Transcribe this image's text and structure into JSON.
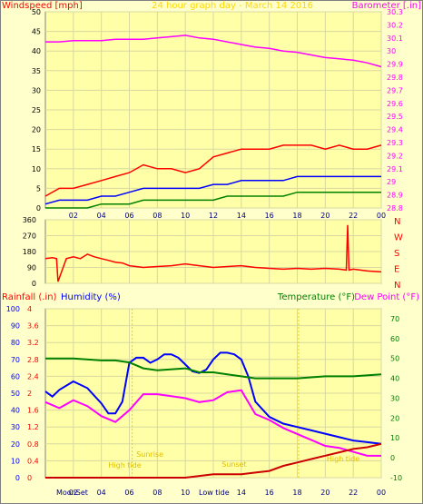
{
  "chart_data": [
    {
      "type": "line",
      "title": "24 hour graph day - March 14 2016",
      "ylabel_left": "Windspeed [mph]",
      "ylabel_right": "Barometer [.in]",
      "x_ticks": [
        "02",
        "04",
        "06",
        "08",
        "10",
        "12",
        "14",
        "16",
        "18",
        "20",
        "22",
        "00"
      ],
      "ylim_left": [
        0,
        50
      ],
      "yticks_left": [
        0,
        5,
        10,
        15,
        20,
        25,
        30,
        35,
        40,
        45,
        50
      ],
      "ylim_right": [
        28.8,
        30.3
      ],
      "yticks_right": [
        "28.8",
        "28.9",
        "29",
        "29.1",
        "29.2",
        "29.3",
        "29.4",
        "29.5",
        "29.6",
        "29.7",
        "29.8",
        "29.9",
        "30",
        "30.1",
        "30.2",
        "30.3"
      ],
      "series": [
        {
          "axis": "right",
          "color": "#ff00ff",
          "x": [
            0,
            1,
            2,
            3,
            4,
            5,
            6,
            7,
            8,
            9,
            10,
            11,
            12,
            13,
            14,
            15,
            16,
            17,
            18,
            19,
            20,
            21,
            22,
            23,
            24
          ],
          "values": [
            30.07,
            30.07,
            30.08,
            30.08,
            30.08,
            30.09,
            30.09,
            30.09,
            30.1,
            30.11,
            30.12,
            30.1,
            30.09,
            30.07,
            30.05,
            30.03,
            30.02,
            30.0,
            29.99,
            29.97,
            29.95,
            29.94,
            29.93,
            29.91,
            29.88
          ]
        },
        {
          "color": "#ff0000",
          "x": [
            0,
            1,
            2,
            3,
            4,
            5,
            6,
            7,
            8,
            9,
            10,
            11,
            12,
            13,
            14,
            15,
            16,
            17,
            18,
            19,
            20,
            21,
            22,
            23,
            24
          ],
          "values": [
            3,
            5,
            5,
            6,
            7,
            8,
            9,
            11,
            10,
            10,
            9,
            10,
            13,
            14,
            15,
            15,
            15,
            16,
            16,
            16,
            15,
            16,
            15,
            15,
            16
          ]
        },
        {
          "color": "#0000ff",
          "x": [
            0,
            1,
            2,
            3,
            4,
            5,
            6,
            7,
            8,
            9,
            10,
            11,
            12,
            13,
            14,
            15,
            16,
            17,
            18,
            19,
            20,
            21,
            22,
            23,
            24
          ],
          "values": [
            1,
            2,
            2,
            2,
            3,
            3,
            4,
            5,
            5,
            5,
            5,
            5,
            6,
            6,
            7,
            7,
            7,
            7,
            8,
            8,
            8,
            8,
            8,
            8,
            8
          ]
        },
        {
          "color": "#008000",
          "x": [
            0,
            1,
            2,
            3,
            4,
            5,
            6,
            7,
            8,
            9,
            10,
            11,
            12,
            13,
            14,
            15,
            16,
            17,
            18,
            19,
            20,
            21,
            22,
            23,
            24
          ],
          "values": [
            0,
            0,
            0,
            0,
            1,
            1,
            1,
            2,
            2,
            2,
            2,
            2,
            2,
            3,
            3,
            3,
            3,
            3,
            4,
            4,
            4,
            4,
            4,
            4,
            4
          ]
        }
      ]
    },
    {
      "type": "line",
      "ylim": [
        0,
        360
      ],
      "yticks": [
        0,
        90,
        180,
        270,
        360
      ],
      "right_labels": [
        "N",
        "W",
        "S",
        "E",
        "N"
      ],
      "series": [
        {
          "color": "#ff0000",
          "x": [
            0,
            0.5,
            0.8,
            0.9,
            1.5,
            2,
            2.5,
            3,
            3.5,
            4,
            4.5,
            5,
            5.5,
            6,
            7,
            8,
            9,
            10,
            11,
            12,
            13,
            14,
            15,
            16,
            17,
            18,
            19,
            20,
            21,
            21.5,
            21.6,
            21.7,
            22,
            23,
            24
          ],
          "values": [
            140,
            145,
            140,
            10,
            140,
            150,
            140,
            165,
            150,
            140,
            130,
            120,
            115,
            100,
            90,
            95,
            100,
            110,
            100,
            90,
            95,
            100,
            90,
            85,
            80,
            85,
            80,
            85,
            80,
            75,
            330,
            75,
            80,
            70,
            65
          ]
        }
      ]
    },
    {
      "type": "line",
      "ylabel_left_1": "Rainfall (.in)",
      "ylabel_left_2": "Humidity (%)",
      "ylabel_right_1": "Temperature (°F)",
      "ylabel_right_2": "Dew Point (°F)",
      "yticks_rain": [
        "0",
        "0.4",
        "0.8",
        "1.2",
        "1.6",
        "2",
        "2.4",
        "2.8",
        "3.2",
        "3.6",
        "4"
      ],
      "yticks_humidity": [
        0,
        10,
        20,
        30,
        40,
        50,
        60,
        70,
        80,
        90,
        100
      ],
      "yticks_temp": [
        -10,
        0,
        10,
        20,
        30,
        40,
        50,
        60,
        70
      ],
      "ylim_humidity": [
        0,
        100
      ],
      "ylim_temp": [
        -10,
        75
      ],
      "x_labels": [
        "MoonSet",
        "Low tide"
      ],
      "sun_labels": [
        "Sunrise",
        "Sunset"
      ],
      "tide_labels": [
        "High tide",
        "High tide"
      ],
      "series": [
        {
          "axis": "humidity",
          "color": "#0000ff",
          "x": [
            0,
            0.5,
            1,
            2,
            3,
            4,
            4.5,
            5,
            5.5,
            6,
            6.5,
            7,
            7.5,
            8,
            8.5,
            9,
            9.5,
            10,
            10.5,
            11,
            11.5,
            12,
            12.5,
            13,
            13.5,
            14,
            14.5,
            15,
            16,
            17,
            18,
            19,
            20,
            21,
            22,
            23,
            24
          ],
          "values": [
            51,
            48,
            52,
            57,
            53,
            44,
            38,
            38,
            45,
            68,
            71,
            71,
            68,
            70,
            73,
            73,
            71,
            67,
            63,
            62,
            64,
            70,
            74,
            74,
            73,
            70,
            60,
            45,
            36,
            32,
            30,
            28,
            26,
            24,
            22,
            21,
            20
          ]
        },
        {
          "axis": "temp",
          "color": "#008000",
          "x": [
            0,
            2,
            4,
            5,
            6,
            7,
            8,
            10,
            11,
            12,
            13,
            14,
            15,
            16,
            18,
            20,
            22,
            24
          ],
          "values": [
            50,
            50,
            49,
            49,
            48,
            45,
            44,
            45,
            43,
            43,
            42,
            41,
            40,
            40,
            40,
            41,
            41,
            42
          ]
        },
        {
          "axis": "temp",
          "color": "#ff00ff",
          "x": [
            0,
            1,
            2,
            3,
            4,
            5,
            6,
            7,
            8,
            9,
            10,
            11,
            12,
            13,
            14,
            15,
            16,
            17,
            18,
            19,
            20,
            21,
            22,
            23,
            24
          ],
          "values": [
            28,
            25,
            29,
            26,
            21,
            18,
            24,
            32,
            32,
            31,
            30,
            28,
            29,
            33,
            34,
            22,
            19,
            15,
            12,
            9,
            6,
            5,
            3,
            1,
            1
          ]
        },
        {
          "axis": "humidity",
          "color": "#cc0000",
          "x": [
            0,
            1,
            2,
            3,
            4,
            5,
            6,
            7,
            8,
            9,
            10,
            11,
            12,
            13,
            14,
            15,
            16,
            17,
            18,
            19,
            20,
            21,
            22,
            23,
            24
          ],
          "values": [
            0,
            0,
            0,
            0,
            0,
            0,
            0,
            0,
            0,
            0,
            0,
            1,
            2,
            2,
            2,
            3,
            4,
            7,
            9,
            11,
            13,
            15,
            17,
            18,
            20
          ]
        }
      ]
    }
  ]
}
